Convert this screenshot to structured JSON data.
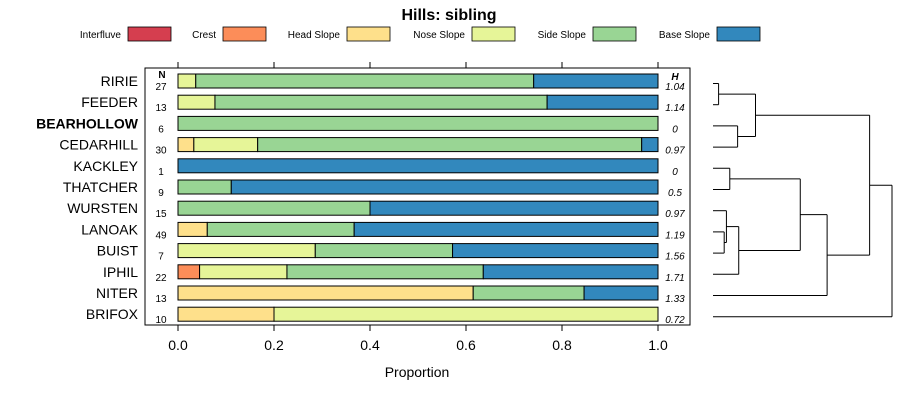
{
  "chart_data": {
    "type": "bar",
    "subtype": "stacked-horizontal-proportion",
    "title": "Hills: sibling",
    "xlabel": "Proportion",
    "xlim": [
      0,
      1
    ],
    "xticks": [
      "0.0",
      "0.2",
      "0.4",
      "0.6",
      "0.8",
      "1.0"
    ],
    "n_header": "N",
    "h_header": "H",
    "legend": [
      {
        "name": "Interfluve",
        "color": "#D53E4F"
      },
      {
        "name": "Crest",
        "color": "#FC8D59"
      },
      {
        "name": "Head Slope",
        "color": "#FEE08B"
      },
      {
        "name": "Nose Slope",
        "color": "#E6F598"
      },
      {
        "name": "Side Slope",
        "color": "#99D594"
      },
      {
        "name": "Base Slope",
        "color": "#3288BD"
      }
    ],
    "categories": [
      "RIRIE",
      "FEEDER",
      "BEARHOLLOW",
      "CEDARHILL",
      "KACKLEY",
      "THATCHER",
      "WURSTEN",
      "LANOAK",
      "BUIST",
      "IPHIL",
      "NITER",
      "BRIFOX"
    ],
    "bold_category": "BEARHOLLOW",
    "n": [
      "27",
      "13",
      "6",
      "30",
      "1",
      "9",
      "15",
      "49",
      "7",
      "22",
      "13",
      "10"
    ],
    "h": [
      "1.04",
      "1.14",
      "0",
      "0.97",
      "0",
      "0.5",
      "0.97",
      "1.19",
      "1.56",
      "1.71",
      "1.33",
      "0.72"
    ],
    "series": [
      {
        "name": "Interfluve",
        "values": [
          0,
          0,
          0,
          0,
          0,
          0,
          0,
          0,
          0,
          0,
          0,
          0
        ]
      },
      {
        "name": "Crest",
        "values": [
          0,
          0,
          0,
          0,
          0,
          0,
          0,
          0,
          0,
          0.045,
          0,
          0
        ]
      },
      {
        "name": "Head Slope",
        "values": [
          0,
          0,
          0,
          0.033,
          0,
          0,
          0,
          0.061,
          0,
          0,
          0.615,
          0.2
        ]
      },
      {
        "name": "Nose Slope",
        "values": [
          0.037,
          0.077,
          0,
          0.133,
          0,
          0,
          0,
          0,
          0.286,
          0.182,
          0,
          0.8
        ]
      },
      {
        "name": "Side Slope",
        "values": [
          0.704,
          0.692,
          1,
          0.8,
          0,
          0.111,
          0.4,
          0.306,
          0.286,
          0.409,
          0.231,
          0
        ]
      },
      {
        "name": "Base Slope",
        "values": [
          0.259,
          0.231,
          0,
          0.034,
          1,
          0.889,
          0.6,
          0.633,
          0.428,
          0.364,
          0.154,
          0
        ]
      }
    ],
    "dendrogram": {
      "type": "hierarchical-clustering",
      "merges": [
        [
          [
            "RIRIE"
          ],
          [
            "FEEDER"
          ],
          0.5
        ],
        [
          [
            "BEARHOLLOW"
          ],
          [
            "CEDARHILL"
          ],
          2.2
        ],
        [
          [
            "RIRIE",
            "FEEDER"
          ],
          [
            "BEARHOLLOW",
            "CEDARHILL"
          ],
          3.8
        ],
        [
          [
            "KACKLEY"
          ],
          [
            "THATCHER"
          ],
          1.5
        ],
        [
          [
            "LANOAK"
          ],
          [
            "BUIST"
          ],
          1.0
        ],
        [
          [
            "WURSTEN"
          ],
          [
            "LANOAK",
            "BUIST"
          ],
          1.2
        ],
        [
          [
            "IPHIL"
          ],
          [
            "WURSTEN",
            "LANOAK",
            "BUIST"
          ],
          2.3
        ],
        [
          [
            "KACKLEY",
            "THATCHER"
          ],
          [
            "IPHIL",
            "WURSTEN",
            "LANOAK",
            "BUIST"
          ],
          7.8
        ],
        [
          [
            "NITER"
          ],
          [
            "KACKLEY",
            "THATCHER",
            "IPHIL",
            "WURSTEN",
            "LANOAK",
            "BUIST"
          ],
          10.2
        ],
        [
          [
            "RIRIE",
            "FEEDER",
            "BEARHOLLOW",
            "CEDARHILL"
          ],
          [
            "NITER",
            "KACKLEY",
            "THATCHER",
            "IPHIL",
            "WURSTEN",
            "LANOAK",
            "BUIST"
          ],
          14.0
        ],
        [
          [
            "BRIFOX"
          ],
          [
            "RIRIE",
            "FEEDER",
            "BEARHOLLOW",
            "CEDARHILL",
            "NITER",
            "KACKLEY",
            "THATCHER",
            "IPHIL",
            "WURSTEN",
            "LANOAK",
            "BUIST"
          ],
          16.0
        ]
      ],
      "leaf_order": [
        "RIRIE",
        "FEEDER",
        "BEARHOLLOW",
        "CEDARHILL",
        "KACKLEY",
        "THATCHER",
        "WURSTEN",
        "LANOAK",
        "BUIST",
        "IPHIL",
        "NITER",
        "BRIFOX"
      ]
    }
  }
}
